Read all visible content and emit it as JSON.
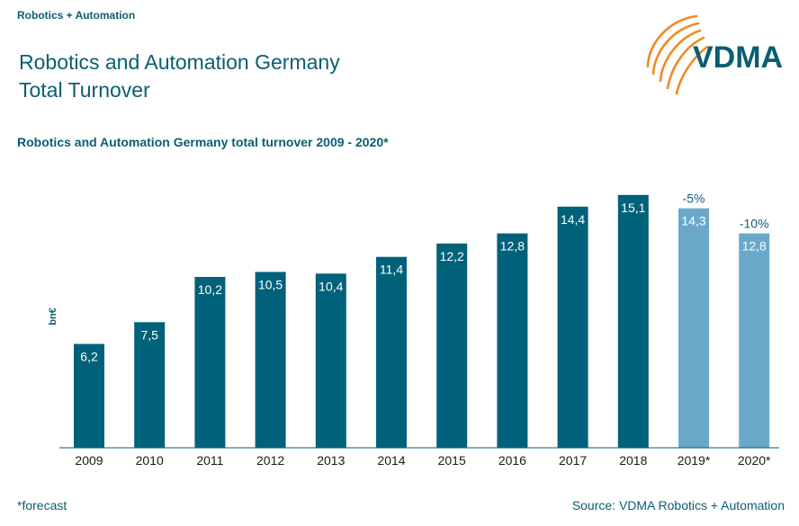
{
  "header": {
    "section_label": "Robotics + Automation",
    "title_line1": "Robotics and Automation Germany",
    "title_line2": "Total Turnover"
  },
  "logo": {
    "text": "VDMA",
    "icon": "vdma-arcs-logo",
    "arc_color": "#f08a24"
  },
  "footer": {
    "footnote": "*forecast",
    "source": "Source: VDMA Robotics + Automation"
  },
  "colors": {
    "actual": "#00627a",
    "forecast": "#6aa8c9",
    "text": "#0a5e72",
    "axis": "#0a5e72"
  },
  "chart_data": {
    "type": "bar",
    "title": "Robotics and Automation Germany total turnover 2009 - 2020*",
    "ylabel": "bn€",
    "xlabel": "",
    "ylim": [
      0,
      16
    ],
    "grid": false,
    "categories": [
      "2009",
      "2010",
      "2011",
      "2012",
      "2013",
      "2014",
      "2015",
      "2016",
      "2017",
      "2018",
      "2019*",
      "2020*"
    ],
    "values": [
      6.2,
      7.5,
      10.2,
      10.5,
      10.4,
      11.4,
      12.2,
      12.8,
      14.4,
      15.1,
      14.3,
      12.8
    ],
    "value_labels": [
      "6,2",
      "7,5",
      "10,2",
      "10,5",
      "10,4",
      "11,4",
      "12,2",
      "12,8",
      "14,4",
      "15,1",
      "14,3",
      "12,8"
    ],
    "forecast": [
      false,
      false,
      false,
      false,
      false,
      false,
      false,
      false,
      false,
      false,
      true,
      true
    ],
    "annotations": [
      "",
      "",
      "",
      "",
      "",
      "",
      "",
      "",
      "",
      "",
      "-5%",
      "-10%"
    ]
  }
}
